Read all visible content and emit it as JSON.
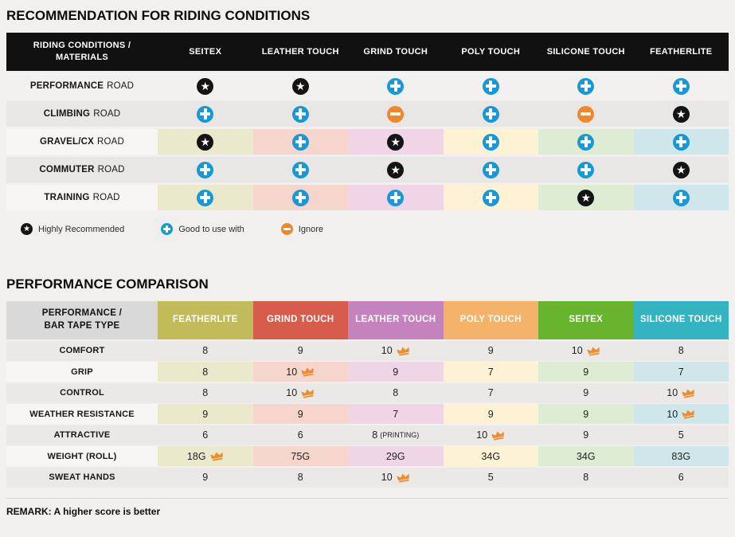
{
  "palette": {
    "pastels": [
      "#ebe9cb",
      "#f6d5cc",
      "#f0d5e7",
      "#fdf3d4",
      "#ddecd2",
      "#cfe7ea"
    ],
    "header1_bg": "#111111",
    "header2_label_bg": "#d9d9d9",
    "row_light": "#f2f1ef",
    "row_lighter": "#f7f6f4",
    "row_dark": "#e8e7e5",
    "row_gray2": "#eae9e7",
    "icon_plus": "#1898d5",
    "icon_minus": "#f0882a",
    "icon_star_bg": "#141414",
    "crown": "#f08c2b"
  },
  "table1": {
    "title": "RECOMMENDATION FOR RIDING CONDITIONS",
    "header": {
      "label": "RIDING CONDITIONS /\nMATERIALS",
      "columns": [
        "SEITEX",
        "LEATHER TOUCH",
        "GRIND TOUCH",
        "POLY TOUCH",
        "SILICONE TOUCH",
        "FEATHERLITE"
      ]
    },
    "rows": [
      {
        "label_bold": "PERFORMANCE",
        "label_rest": "ROAD",
        "colored": false,
        "shade": "light",
        "cells": [
          "star",
          "star",
          "plus",
          "plus",
          "plus",
          "plus"
        ]
      },
      {
        "label_bold": "CLIMBING",
        "label_rest": "ROAD",
        "colored": false,
        "shade": "dark",
        "cells": [
          "plus",
          "plus",
          "minus",
          "plus",
          "minus",
          "star"
        ]
      },
      {
        "label_bold": "GRAVEL/CX",
        "label_rest": "ROAD",
        "colored": true,
        "shade": "light",
        "cells": [
          "star",
          "plus",
          "star",
          "plus",
          "plus",
          "plus"
        ]
      },
      {
        "label_bold": "COMMUTER",
        "label_rest": "ROAD",
        "colored": false,
        "shade": "dark",
        "cells": [
          "plus",
          "plus",
          "star",
          "plus",
          "plus",
          "star"
        ]
      },
      {
        "label_bold": "TRAINING",
        "label_rest": "ROAD",
        "colored": true,
        "shade": "light",
        "cells": [
          "plus",
          "plus",
          "plus",
          "plus",
          "star",
          "plus"
        ]
      }
    ],
    "legend": [
      {
        "icon": "star",
        "label": "Highly Recommended"
      },
      {
        "icon": "plus",
        "label": "Good to use with"
      },
      {
        "icon": "minus",
        "label": "Ignore"
      }
    ]
  },
  "table2": {
    "title": "PERFORMANCE COMPARISON",
    "header": {
      "label": "PERFORMANCE /\nBAR TAPE TYPE",
      "columns": [
        {
          "name": "FEATHERLITE",
          "color": "#c1bc59"
        },
        {
          "name": "GRIND TOUCH",
          "color": "#d85c4c"
        },
        {
          "name": "LEATHER TOUCH",
          "color": "#c583bd"
        },
        {
          "name": "POLY TOUCH",
          "color": "#f5b269"
        },
        {
          "name": "SEITEX",
          "color": "#69b42e"
        },
        {
          "name": "SILICONE TOUCH",
          "color": "#34b3c0"
        }
      ]
    },
    "rows": [
      {
        "label": "COMFORT",
        "colored": false,
        "cells": [
          {
            "v": "8"
          },
          {
            "v": "9"
          },
          {
            "v": "10",
            "crown": true
          },
          {
            "v": "9"
          },
          {
            "v": "10",
            "crown": true
          },
          {
            "v": "8"
          }
        ]
      },
      {
        "label": "GRIP",
        "colored": true,
        "cells": [
          {
            "v": "8"
          },
          {
            "v": "10",
            "crown": true
          },
          {
            "v": "9"
          },
          {
            "v": "7"
          },
          {
            "v": "9"
          },
          {
            "v": "7"
          }
        ]
      },
      {
        "label": "CONTROL",
        "colored": false,
        "cells": [
          {
            "v": "8"
          },
          {
            "v": "10",
            "crown": true
          },
          {
            "v": "8"
          },
          {
            "v": "7"
          },
          {
            "v": "9"
          },
          {
            "v": "10",
            "crown": true
          }
        ]
      },
      {
        "label": "WEATHER RESISTANCE",
        "colored": true,
        "cells": [
          {
            "v": "9"
          },
          {
            "v": "9"
          },
          {
            "v": "7"
          },
          {
            "v": "9"
          },
          {
            "v": "9"
          },
          {
            "v": "10",
            "crown": true
          }
        ]
      },
      {
        "label": "ATTRACTIVE",
        "colored": false,
        "cells": [
          {
            "v": "6"
          },
          {
            "v": "6"
          },
          {
            "v": "8",
            "note": "(PRINTING)"
          },
          {
            "v": "10",
            "crown": true
          },
          {
            "v": "9"
          },
          {
            "v": "5"
          }
        ]
      },
      {
        "label": "WEIGHT (ROLL)",
        "colored": true,
        "cells": [
          {
            "v": "18G",
            "crown": true
          },
          {
            "v": "75G"
          },
          {
            "v": "29G"
          },
          {
            "v": "34G"
          },
          {
            "v": "34G"
          },
          {
            "v": "83G"
          }
        ]
      },
      {
        "label": "SWEAT HANDS",
        "colored": false,
        "cells": [
          {
            "v": "9"
          },
          {
            "v": "8"
          },
          {
            "v": "10",
            "crown": true
          },
          {
            "v": "5"
          },
          {
            "v": "8"
          },
          {
            "v": "6"
          }
        ]
      }
    ],
    "remark": "REMARK: A higher score is better"
  }
}
